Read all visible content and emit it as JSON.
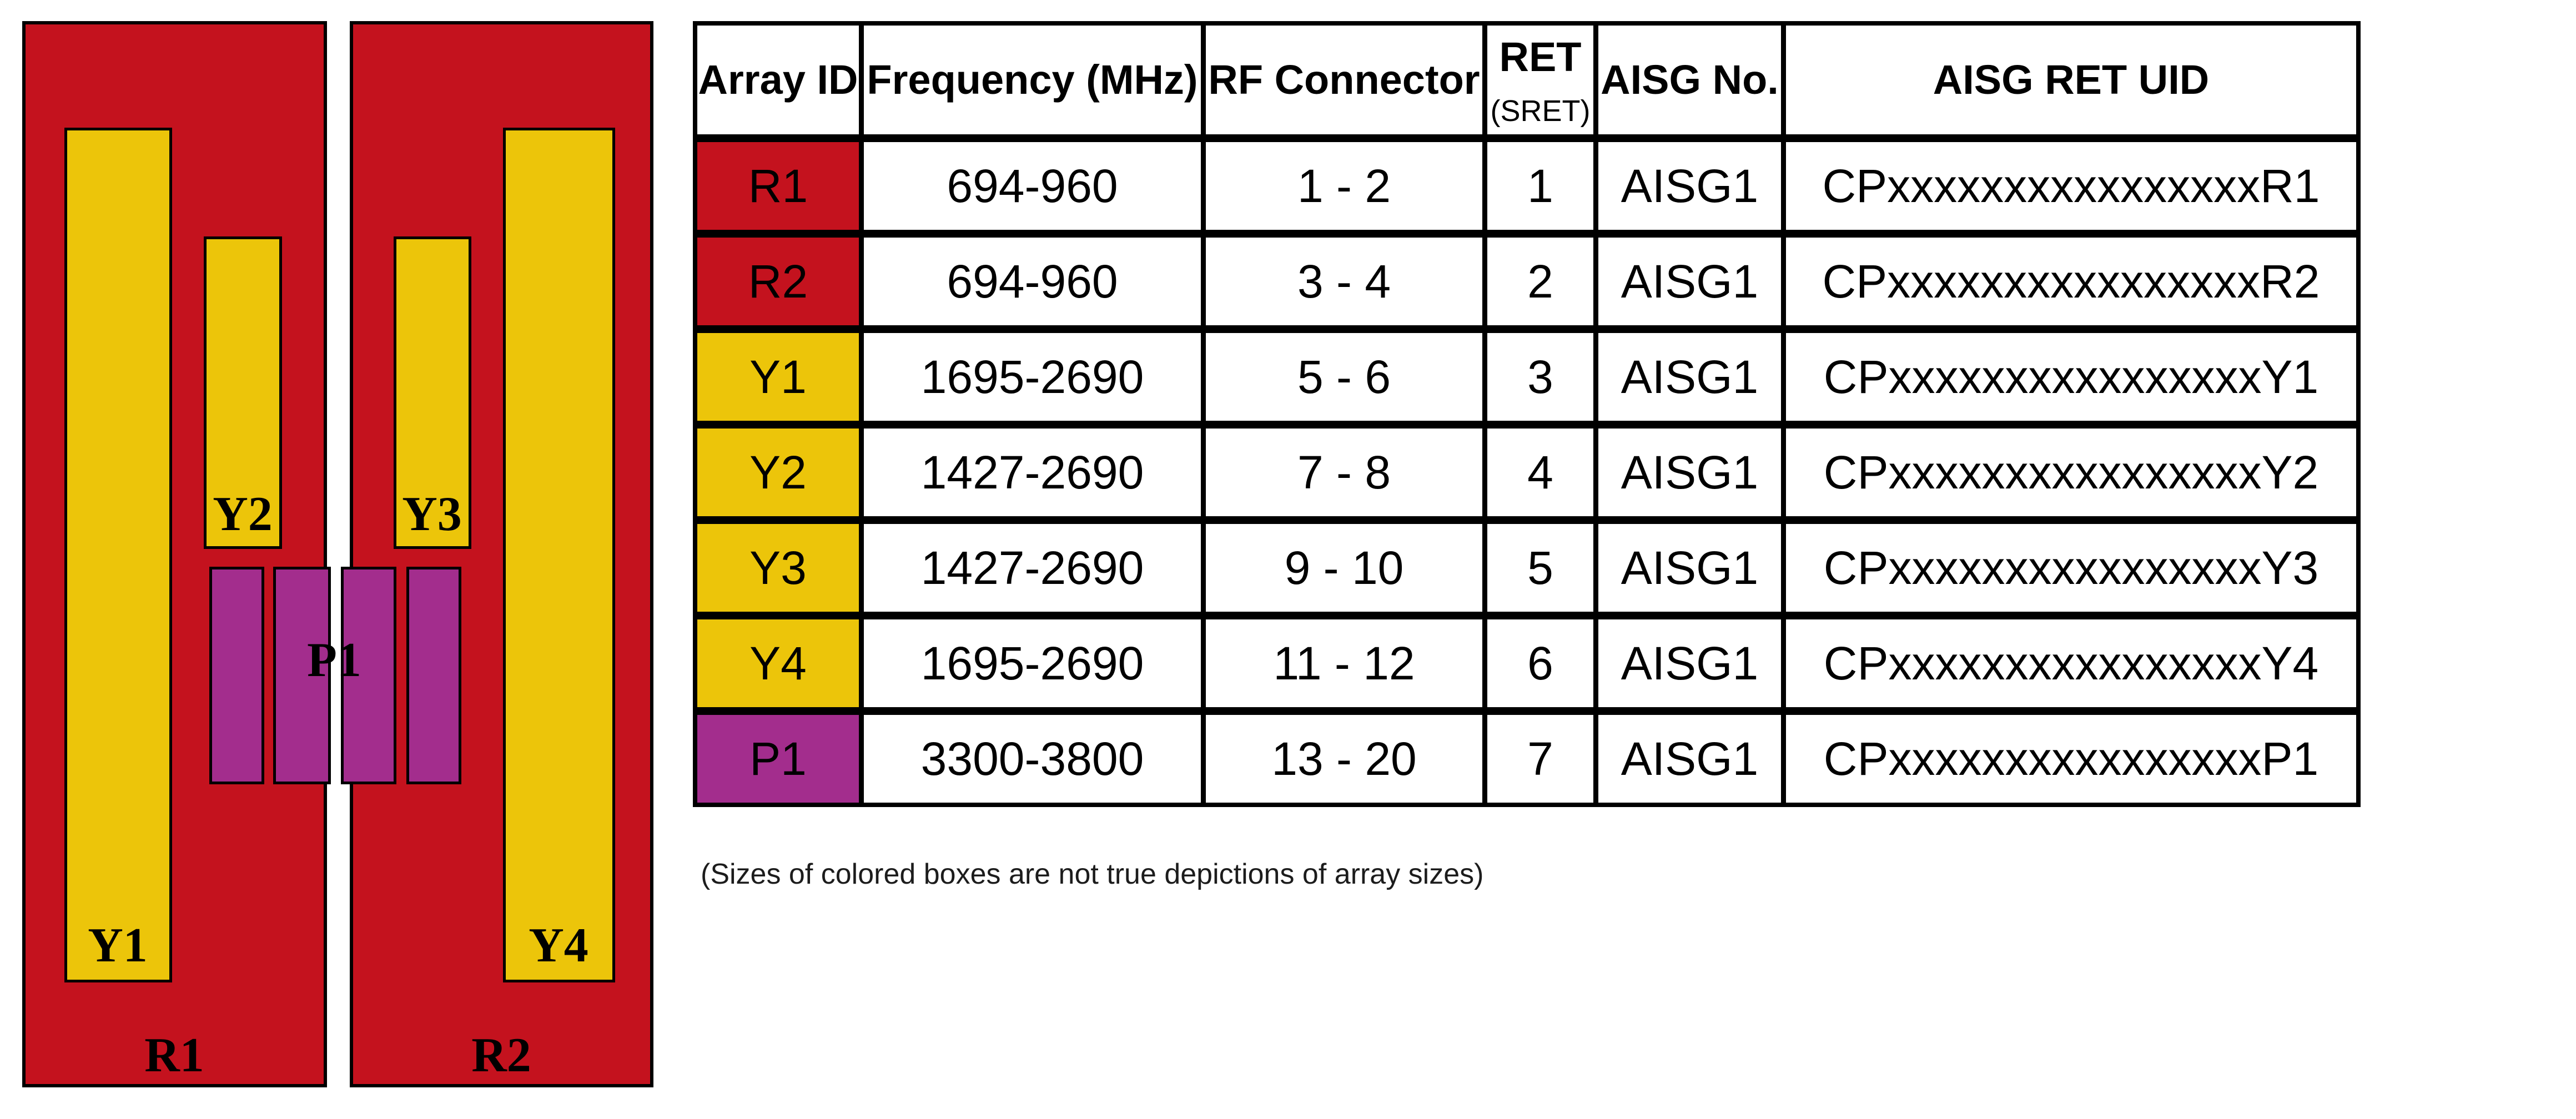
{
  "colors": {
    "red": "#C4121E",
    "yellow": "#ECC50A",
    "purple": "#A32D8D",
    "line": "#000000"
  },
  "diagram": {
    "red_panels": [
      {
        "label": "R1"
      },
      {
        "label": "R2"
      }
    ],
    "yellow_arrays": [
      {
        "label": "Y1"
      },
      {
        "label": "Y2"
      },
      {
        "label": "Y3"
      },
      {
        "label": "Y4"
      }
    ],
    "purple_array_label": "P1"
  },
  "table": {
    "headers": {
      "array_id": "Array ID",
      "frequency": "Frequency (MHz)",
      "rf_connector": "RF Connector",
      "ret": "RET",
      "ret_sub": "(SRET)",
      "aisg_no": "AISG No.",
      "aisg_ret_uid": "AISG RET UID"
    },
    "rows": [
      {
        "array_id": "R1",
        "frequency": "694-960",
        "rf_connector": "1 - 2",
        "ret": "1",
        "aisg_no": "AISG1",
        "aisg_ret_uid": "CPxxxxxxxxxxxxxxxxR1",
        "color": "#C4121E"
      },
      {
        "array_id": "R2",
        "frequency": "694-960",
        "rf_connector": "3 - 4",
        "ret": "2",
        "aisg_no": "AISG1",
        "aisg_ret_uid": "CPxxxxxxxxxxxxxxxxR2",
        "color": "#C4121E"
      },
      {
        "array_id": "Y1",
        "frequency": "1695-2690",
        "rf_connector": "5 - 6",
        "ret": "3",
        "aisg_no": "AISG1",
        "aisg_ret_uid": "CPxxxxxxxxxxxxxxxxY1",
        "color": "#ECC50A"
      },
      {
        "array_id": "Y2",
        "frequency": "1427-2690",
        "rf_connector": "7 - 8",
        "ret": "4",
        "aisg_no": "AISG1",
        "aisg_ret_uid": "CPxxxxxxxxxxxxxxxxY2",
        "color": "#ECC50A"
      },
      {
        "array_id": "Y3",
        "frequency": "1427-2690",
        "rf_connector": "9 - 10",
        "ret": "5",
        "aisg_no": "AISG1",
        "aisg_ret_uid": "CPxxxxxxxxxxxxxxxxY3",
        "color": "#ECC50A"
      },
      {
        "array_id": "Y4",
        "frequency": "1695-2690",
        "rf_connector": "11 - 12",
        "ret": "6",
        "aisg_no": "AISG1",
        "aisg_ret_uid": "CPxxxxxxxxxxxxxxxxY4",
        "color": "#ECC50A"
      },
      {
        "array_id": "P1",
        "frequency": "3300-3800",
        "rf_connector": "13 - 20",
        "ret": "7",
        "aisg_no": "AISG1",
        "aisg_ret_uid": "CPxxxxxxxxxxxxxxxxP1",
        "color": "#A32D8D"
      }
    ]
  },
  "note": "(Sizes of colored boxes are not true depictions of array sizes)"
}
